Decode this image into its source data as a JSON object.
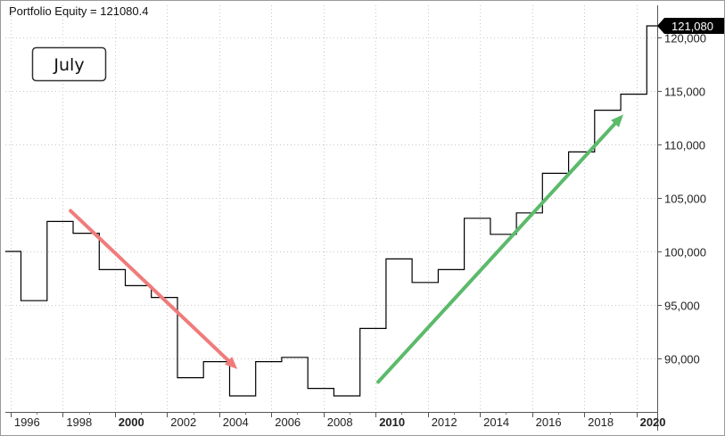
{
  "chart_data": {
    "type": "line",
    "title": "Portfolio Equity = 121080.4",
    "annotation_label": "July",
    "last_value_label": "121,080",
    "xlabel": "",
    "ylabel": "",
    "xlim": [
      1995.8,
      2020.8
    ],
    "ylim": [
      85000,
      123000
    ],
    "grid": true,
    "x_ticks": [
      {
        "value": 1996,
        "label": "1996",
        "bold": false
      },
      {
        "value": 1998,
        "label": "1998",
        "bold": false
      },
      {
        "value": 2000,
        "label": "2000",
        "bold": true
      },
      {
        "value": 2002,
        "label": "2002",
        "bold": false
      },
      {
        "value": 2004,
        "label": "2004",
        "bold": false
      },
      {
        "value": 2006,
        "label": "2006",
        "bold": false
      },
      {
        "value": 2008,
        "label": "2008",
        "bold": false
      },
      {
        "value": 2010,
        "label": "2010",
        "bold": true
      },
      {
        "value": 2012,
        "label": "2012",
        "bold": false
      },
      {
        "value": 2014,
        "label": "2014",
        "bold": false
      },
      {
        "value": 2016,
        "label": "2016",
        "bold": false
      },
      {
        "value": 2018,
        "label": "2018",
        "bold": false
      },
      {
        "value": 2020,
        "label": "2020",
        "bold": true
      }
    ],
    "y_ticks": [
      {
        "value": 90000,
        "label": "90,000"
      },
      {
        "value": 95000,
        "label": "95,000"
      },
      {
        "value": 100000,
        "label": "100,000"
      },
      {
        "value": 105000,
        "label": "105,000"
      },
      {
        "value": 110000,
        "label": "110,000"
      },
      {
        "value": 115000,
        "label": "115,000"
      },
      {
        "value": 120000,
        "label": "120,000"
      }
    ],
    "series": [
      {
        "style": "step",
        "color": "#000000",
        "points": [
          {
            "x": 1995.8,
            "y": 100000
          },
          {
            "x": 1996.4,
            "y": 95400
          },
          {
            "x": 1997.4,
            "y": 102800
          },
          {
            "x": 1998.4,
            "y": 101700
          },
          {
            "x": 1999.4,
            "y": 98300
          },
          {
            "x": 2000.4,
            "y": 96800
          },
          {
            "x": 2001.4,
            "y": 95700
          },
          {
            "x": 2002.4,
            "y": 88200
          },
          {
            "x": 2003.4,
            "y": 89700
          },
          {
            "x": 2004.4,
            "y": 86500
          },
          {
            "x": 2005.4,
            "y": 89700
          },
          {
            "x": 2006.4,
            "y": 90100
          },
          {
            "x": 2007.4,
            "y": 87200
          },
          {
            "x": 2008.4,
            "y": 86500
          },
          {
            "x": 2009.4,
            "y": 92800
          },
          {
            "x": 2010.4,
            "y": 99300
          },
          {
            "x": 2011.4,
            "y": 97100
          },
          {
            "x": 2012.4,
            "y": 98300
          },
          {
            "x": 2013.4,
            "y": 103100
          },
          {
            "x": 2014.4,
            "y": 101600
          },
          {
            "x": 2015.4,
            "y": 103600
          },
          {
            "x": 2016.4,
            "y": 107300
          },
          {
            "x": 2017.4,
            "y": 109300
          },
          {
            "x": 2018.4,
            "y": 113200
          },
          {
            "x": 2019.4,
            "y": 114700
          },
          {
            "x": 2020.4,
            "y": 121080
          },
          {
            "x": 2020.8,
            "y": 121080
          }
        ]
      }
    ],
    "arrows": [
      {
        "name": "downtrend-arrow",
        "color": "#f07b7b",
        "from": {
          "x": 1998.3,
          "y": 103800
        },
        "to": {
          "x": 2004.7,
          "y": 89000
        }
      },
      {
        "name": "uptrend-arrow",
        "color": "#5cba6b",
        "from": {
          "x": 2010.1,
          "y": 87800
        },
        "to": {
          "x": 2019.5,
          "y": 112800
        }
      }
    ]
  }
}
